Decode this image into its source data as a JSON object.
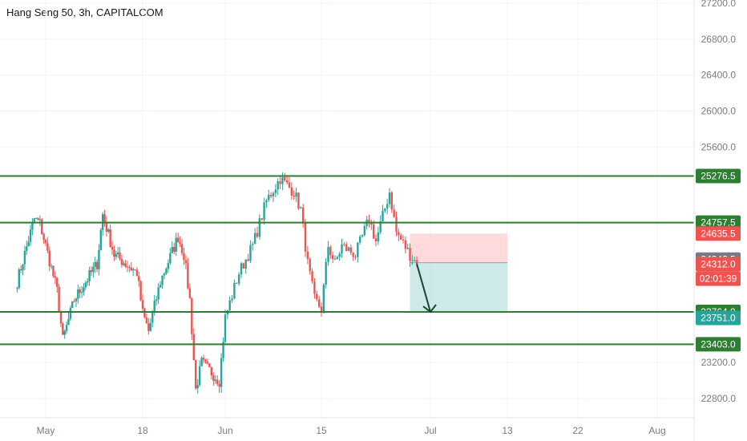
{
  "header": {
    "title": "Hang Seng 50, 3h, CAPITALCOM"
  },
  "colors": {
    "up": "#26a69a",
    "down": "#ef5350",
    "level_line": "#2e7d32",
    "axis_text": "#787b86",
    "grid": "#f0f3fa",
    "stop_zone": "#ffcdd2",
    "target_zone": "#b2dfdb",
    "arrow": "#1b4332",
    "price_tag": "#787b86",
    "timer_tag": "#ef5350",
    "entry_tag": "#ef5350",
    "current_tag": "#26a69a"
  },
  "chart_data": {
    "type": "candlestick",
    "title": "Hang Seng 50, 3h, CAPITALCOM",
    "ylim": [
      22600,
      27300
    ],
    "y_ticks": [
      "22800.0",
      "23200.0",
      "25600.0",
      "26000.0",
      "26400.0",
      "26800.0",
      "27200.0"
    ],
    "x_ticks": [
      "May",
      "18",
      "Jun",
      "15",
      "Jul",
      "13",
      "22",
      "Aug"
    ],
    "x_tick_times": [
      "2021-05-01",
      "2021-05-18",
      "2021-06-01",
      "2021-06-15",
      "2021-07-01",
      "2021-07-13",
      "2021-07-22",
      "2021-08-01"
    ],
    "ohlc_anchor_closes": [
      [
        "2021-04-26",
        24100
      ],
      [
        "2021-04-29",
        24800
      ],
      [
        "2021-04-30",
        24750
      ],
      [
        "2021-05-03",
        24000
      ],
      [
        "2021-05-04",
        23450
      ],
      [
        "2021-05-06",
        23900
      ],
      [
        "2021-05-10",
        24300
      ],
      [
        "2021-05-11",
        24850
      ],
      [
        "2021-05-13",
        24400
      ],
      [
        "2021-05-17",
        24200
      ],
      [
        "2021-05-18",
        23750
      ],
      [
        "2021-05-19",
        23550
      ],
      [
        "2021-05-21",
        24100
      ],
      [
        "2021-05-24",
        24600
      ],
      [
        "2021-05-25",
        24400
      ],
      [
        "2021-05-26",
        23900
      ],
      [
        "2021-05-27",
        22900
      ],
      [
        "2021-05-28",
        23200
      ],
      [
        "2021-05-31",
        23000
      ],
      [
        "2021-06-01",
        23700
      ],
      [
        "2021-06-03",
        24200
      ],
      [
        "2021-06-05",
        24500
      ],
      [
        "2021-06-07",
        25000
      ],
      [
        "2021-06-09",
        25250
      ],
      [
        "2021-06-11",
        25100
      ],
      [
        "2021-06-12",
        24900
      ],
      [
        "2021-06-13",
        24300
      ],
      [
        "2021-06-14",
        23900
      ],
      [
        "2021-06-15",
        23800
      ],
      [
        "2021-06-16",
        24500
      ],
      [
        "2021-06-17",
        24300
      ],
      [
        "2021-06-18",
        24500
      ],
      [
        "2021-06-20",
        24400
      ],
      [
        "2021-06-22",
        24800
      ],
      [
        "2021-06-23",
        24550
      ],
      [
        "2021-06-25",
        25100
      ],
      [
        "2021-06-26",
        24650
      ],
      [
        "2021-06-28",
        24400
      ],
      [
        "2021-06-29",
        24300
      ]
    ],
    "levels": [
      {
        "label": "25276.5",
        "value": 25276.5
      },
      {
        "label": "24757.5",
        "value": 24757.5
      },
      {
        "label": "23764.0",
        "value": 23764.0
      },
      {
        "label": "23403.0",
        "value": 23403.0
      }
    ],
    "position": {
      "type": "short",
      "stop_label": "24635.5",
      "stop": 24635.5,
      "entry_label": "24312.0",
      "entry": 24312.0,
      "target_label": "23764.0",
      "target": 23764.0,
      "start": "2021-06-28",
      "end": "2021-07-13"
    },
    "projection_arrow": {
      "from": [
        "2021-06-29",
        24300
      ],
      "to": [
        "2021-07-01",
        23764
      ]
    },
    "last_price_label": "24346.5",
    "last_price": 24346.5,
    "current_price_label": "23751.0",
    "current_price": 23751.0,
    "countdown_label": "02:01:39"
  }
}
